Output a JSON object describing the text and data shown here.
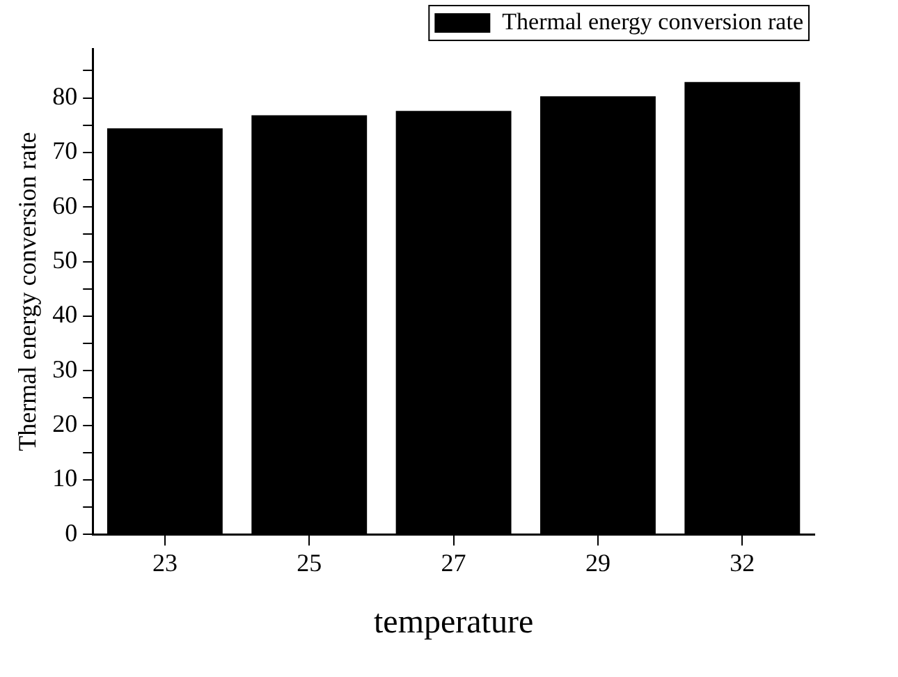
{
  "chart_data": {
    "type": "bar",
    "xlabel": "temperature",
    "ylabel": "Thermal energy conversion rate",
    "categories": [
      "23",
      "25",
      "27",
      "29",
      "32"
    ],
    "series": [
      {
        "name": "Thermal energy conversion rate",
        "color": "#000000",
        "values": [
          74.4,
          76.8,
          77.6,
          80.3,
          82.9
        ]
      }
    ],
    "ylim": [
      0,
      89
    ],
    "yticks": [
      0,
      {
        "value": 5,
        "label": null
      },
      10,
      {
        "value": 15,
        "label": null
      },
      20,
      {
        "value": 25,
        "label": null
      },
      30,
      {
        "value": 35,
        "label": null
      },
      40,
      {
        "value": 45,
        "label": null
      },
      50,
      {
        "value": 55,
        "label": null
      },
      60,
      {
        "value": 65,
        "label": null
      },
      70,
      {
        "value": 75,
        "label": null
      },
      80,
      {
        "value": 85,
        "label": null
      }
    ],
    "grid": false,
    "legend": "top right"
  }
}
